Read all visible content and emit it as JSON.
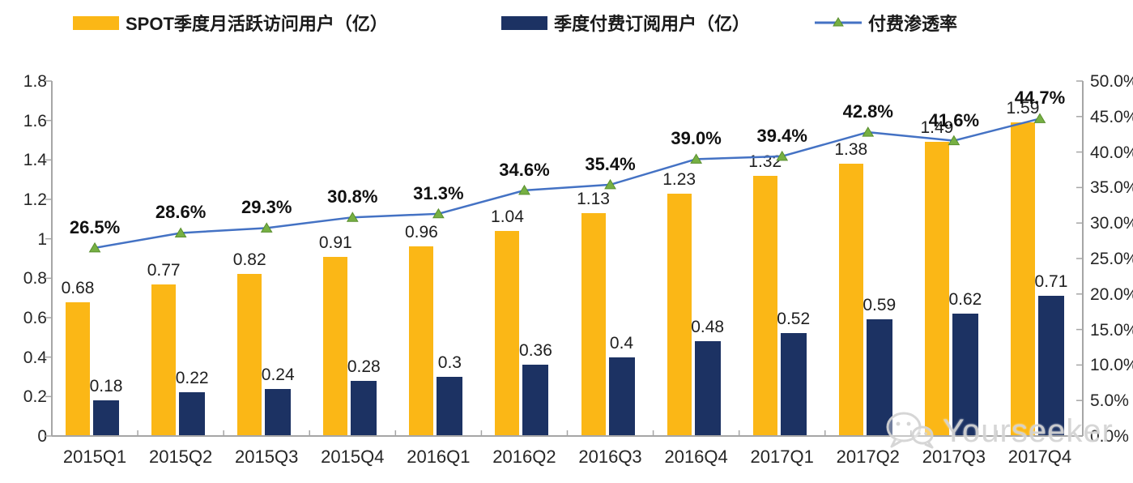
{
  "legend": {
    "items": [
      {
        "label": "SPOT季度月活跃访问用户（亿）",
        "swatch": "bar",
        "color": "#FBB716"
      },
      {
        "label": "季度付费订阅用户（亿）",
        "swatch": "bar",
        "color": "#1C3263"
      },
      {
        "label": "付费渗透率",
        "swatch": "line",
        "color": "#4472C4",
        "marker_color": "#76B043"
      }
    ]
  },
  "watermark": {
    "text": "Yourseeker",
    "icon": "wechat-icon"
  },
  "chart_data": {
    "type": "bar",
    "subtype": "grouped bars with overlaid line (dual axis)",
    "title": "",
    "legend_position": "top",
    "grid": false,
    "categories": [
      "2015Q1",
      "2015Q2",
      "2015Q3",
      "2015Q4",
      "2016Q1",
      "2016Q2",
      "2016Q3",
      "2016Q4",
      "2017Q1",
      "2017Q2",
      "2017Q3",
      "2017Q4"
    ],
    "series": [
      {
        "name": "SPOT季度月活跃访问用户（亿）",
        "type": "bar",
        "axis": "left",
        "color": "#FBB716",
        "values": [
          0.68,
          0.77,
          0.82,
          0.91,
          0.96,
          1.04,
          1.13,
          1.23,
          1.32,
          1.38,
          1.49,
          1.59
        ],
        "labels": [
          "0.68",
          "0.77",
          "0.82",
          "0.91",
          "0.96",
          "1.04",
          "1.13",
          "1.23",
          "1.32",
          "1.38",
          "1.49",
          "1.59"
        ]
      },
      {
        "name": "季度付费订阅用户（亿）",
        "type": "bar",
        "axis": "left",
        "color": "#1C3263",
        "values": [
          0.18,
          0.22,
          0.24,
          0.28,
          0.3,
          0.36,
          0.4,
          0.48,
          0.52,
          0.59,
          0.62,
          0.71
        ],
        "labels": [
          "0.18",
          "0.22",
          "0.24",
          "0.28",
          "0.3",
          "0.36",
          "0.4",
          "0.48",
          "0.52",
          "0.59",
          "0.62",
          "0.71"
        ]
      },
      {
        "name": "付费渗透率",
        "type": "line",
        "axis": "right",
        "color": "#4472C4",
        "marker": "triangle",
        "marker_color": "#76B043",
        "values": [
          26.5,
          28.6,
          29.3,
          30.8,
          31.3,
          34.6,
          35.4,
          39.0,
          39.4,
          42.8,
          41.6,
          44.7
        ],
        "labels": [
          "26.5%",
          "28.6%",
          "29.3%",
          "30.8%",
          "31.3%",
          "34.6%",
          "35.4%",
          "39.0%",
          "39.4%",
          "42.8%",
          "41.6%",
          "44.7%"
        ]
      }
    ],
    "left_axis": {
      "min": 0,
      "max": 1.8,
      "step": 0.2,
      "tick_labels": [
        "0",
        "0.2",
        "0.4",
        "0.6",
        "0.8",
        "1",
        "1.2",
        "1.4",
        "1.6",
        "1.8"
      ]
    },
    "right_axis": {
      "min": 0,
      "max": 50,
      "step": 5,
      "unit": "%",
      "tick_labels": [
        "0.0%",
        "5.0%",
        "10.0%",
        "15.0%",
        "20.0%",
        "25.0%",
        "30.0%",
        "35.0%",
        "40.0%",
        "45.0%",
        "50.0%"
      ]
    }
  }
}
